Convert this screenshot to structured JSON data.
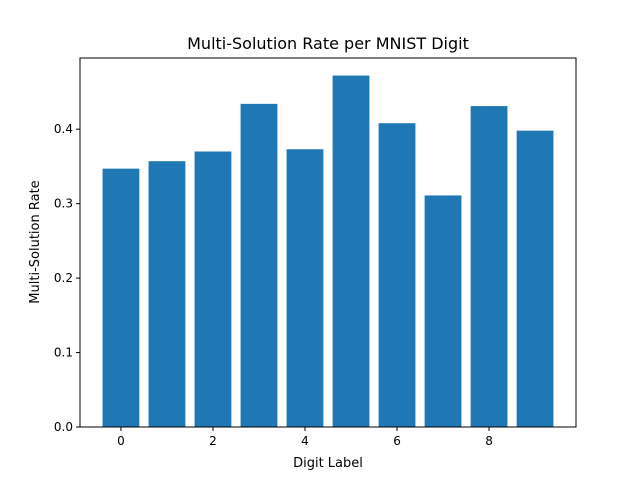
{
  "chart_data": {
    "type": "bar",
    "title": "Multi-Solution Rate per MNIST Digit",
    "xlabel": "Digit Label",
    "ylabel": "Multi-Solution Rate",
    "categories": [
      0,
      1,
      2,
      3,
      4,
      5,
      6,
      7,
      8,
      9
    ],
    "values": [
      0.347,
      0.357,
      0.37,
      0.434,
      0.373,
      0.472,
      0.408,
      0.311,
      0.431,
      0.398
    ],
    "x_ticks": [
      0,
      2,
      4,
      6,
      8
    ],
    "x_tick_labels": [
      "0",
      "2",
      "4",
      "6",
      "8"
    ],
    "y_ticks": [
      0.0,
      0.1,
      0.2,
      0.3,
      0.4
    ],
    "y_tick_labels": [
      "0.0",
      "0.1",
      "0.2",
      "0.3",
      "0.4"
    ],
    "xlim": [
      -0.89,
      9.89
    ],
    "ylim": [
      0,
      0.4956
    ],
    "bar_color": "#1f77b4",
    "grid": false,
    "legend": "none"
  }
}
